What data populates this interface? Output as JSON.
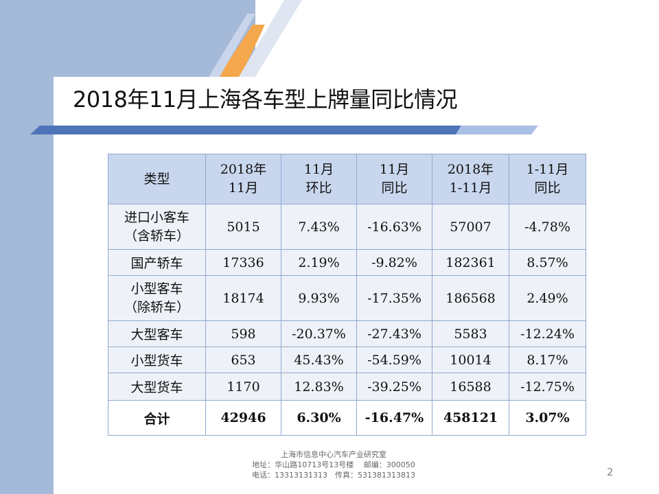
{
  "title": "2018年11月上海各车型上牌量同比情况",
  "table": {
    "headers": [
      {
        "line1": "类型",
        "line2": ""
      },
      {
        "line1": "2018年",
        "line2": "11月"
      },
      {
        "line1": "11月",
        "line2": "环比"
      },
      {
        "line1": "11月",
        "line2": "同比"
      },
      {
        "line1": "2018年",
        "line2": "1-11月"
      },
      {
        "line1": "1-11月",
        "line2": "同比"
      }
    ],
    "rows": [
      {
        "label1": "进口小客车",
        "label2": "（含轿车）",
        "nov": "5015",
        "mom": "7.43%",
        "yoy": "-16.63%",
        "ytd": "57007",
        "ytd_yoy": "-4.78%"
      },
      {
        "label1": "国产轿车",
        "label2": "",
        "nov": "17336",
        "mom": "2.19%",
        "yoy": "-9.82%",
        "ytd": "182361",
        "ytd_yoy": "8.57%"
      },
      {
        "label1": "小型客车",
        "label2": "（除轿车）",
        "nov": "18174",
        "mom": "9.93%",
        "yoy": "-17.35%",
        "ytd": "186568",
        "ytd_yoy": "2.49%"
      },
      {
        "label1": "大型客车",
        "label2": "",
        "nov": "598",
        "mom": "-20.37%",
        "yoy": "-27.43%",
        "ytd": "5583",
        "ytd_yoy": "-12.24%"
      },
      {
        "label1": "小型货车",
        "label2": "",
        "nov": "653",
        "mom": "45.43%",
        "yoy": "-54.59%",
        "ytd": "10014",
        "ytd_yoy": "8.17%"
      },
      {
        "label1": "大型货车",
        "label2": "",
        "nov": "1170",
        "mom": "12.83%",
        "yoy": "-39.25%",
        "ytd": "16588",
        "ytd_yoy": "-12.75%"
      }
    ],
    "total": {
      "label": "合计",
      "nov": "42946",
      "mom": "6.30%",
      "yoy": "-16.47%",
      "ytd": "458121",
      "ytd_yoy": "3.07%"
    }
  },
  "footer": {
    "line1": "上海市信息中心汽车产业研究室",
    "line2": "地址：华山路10713号13号楼　 邮编：300050",
    "line3": "电话：13313131313　传真：531381313813"
  },
  "page_number": "2",
  "colors": {
    "panel": "#a5b9d8",
    "accent_orange": "#f4a74c",
    "title_bar_blue": "#4f74b8",
    "header_fill": "#c9d7ee",
    "body_fill": "#eef1f7",
    "border": "#8fa8cf"
  }
}
